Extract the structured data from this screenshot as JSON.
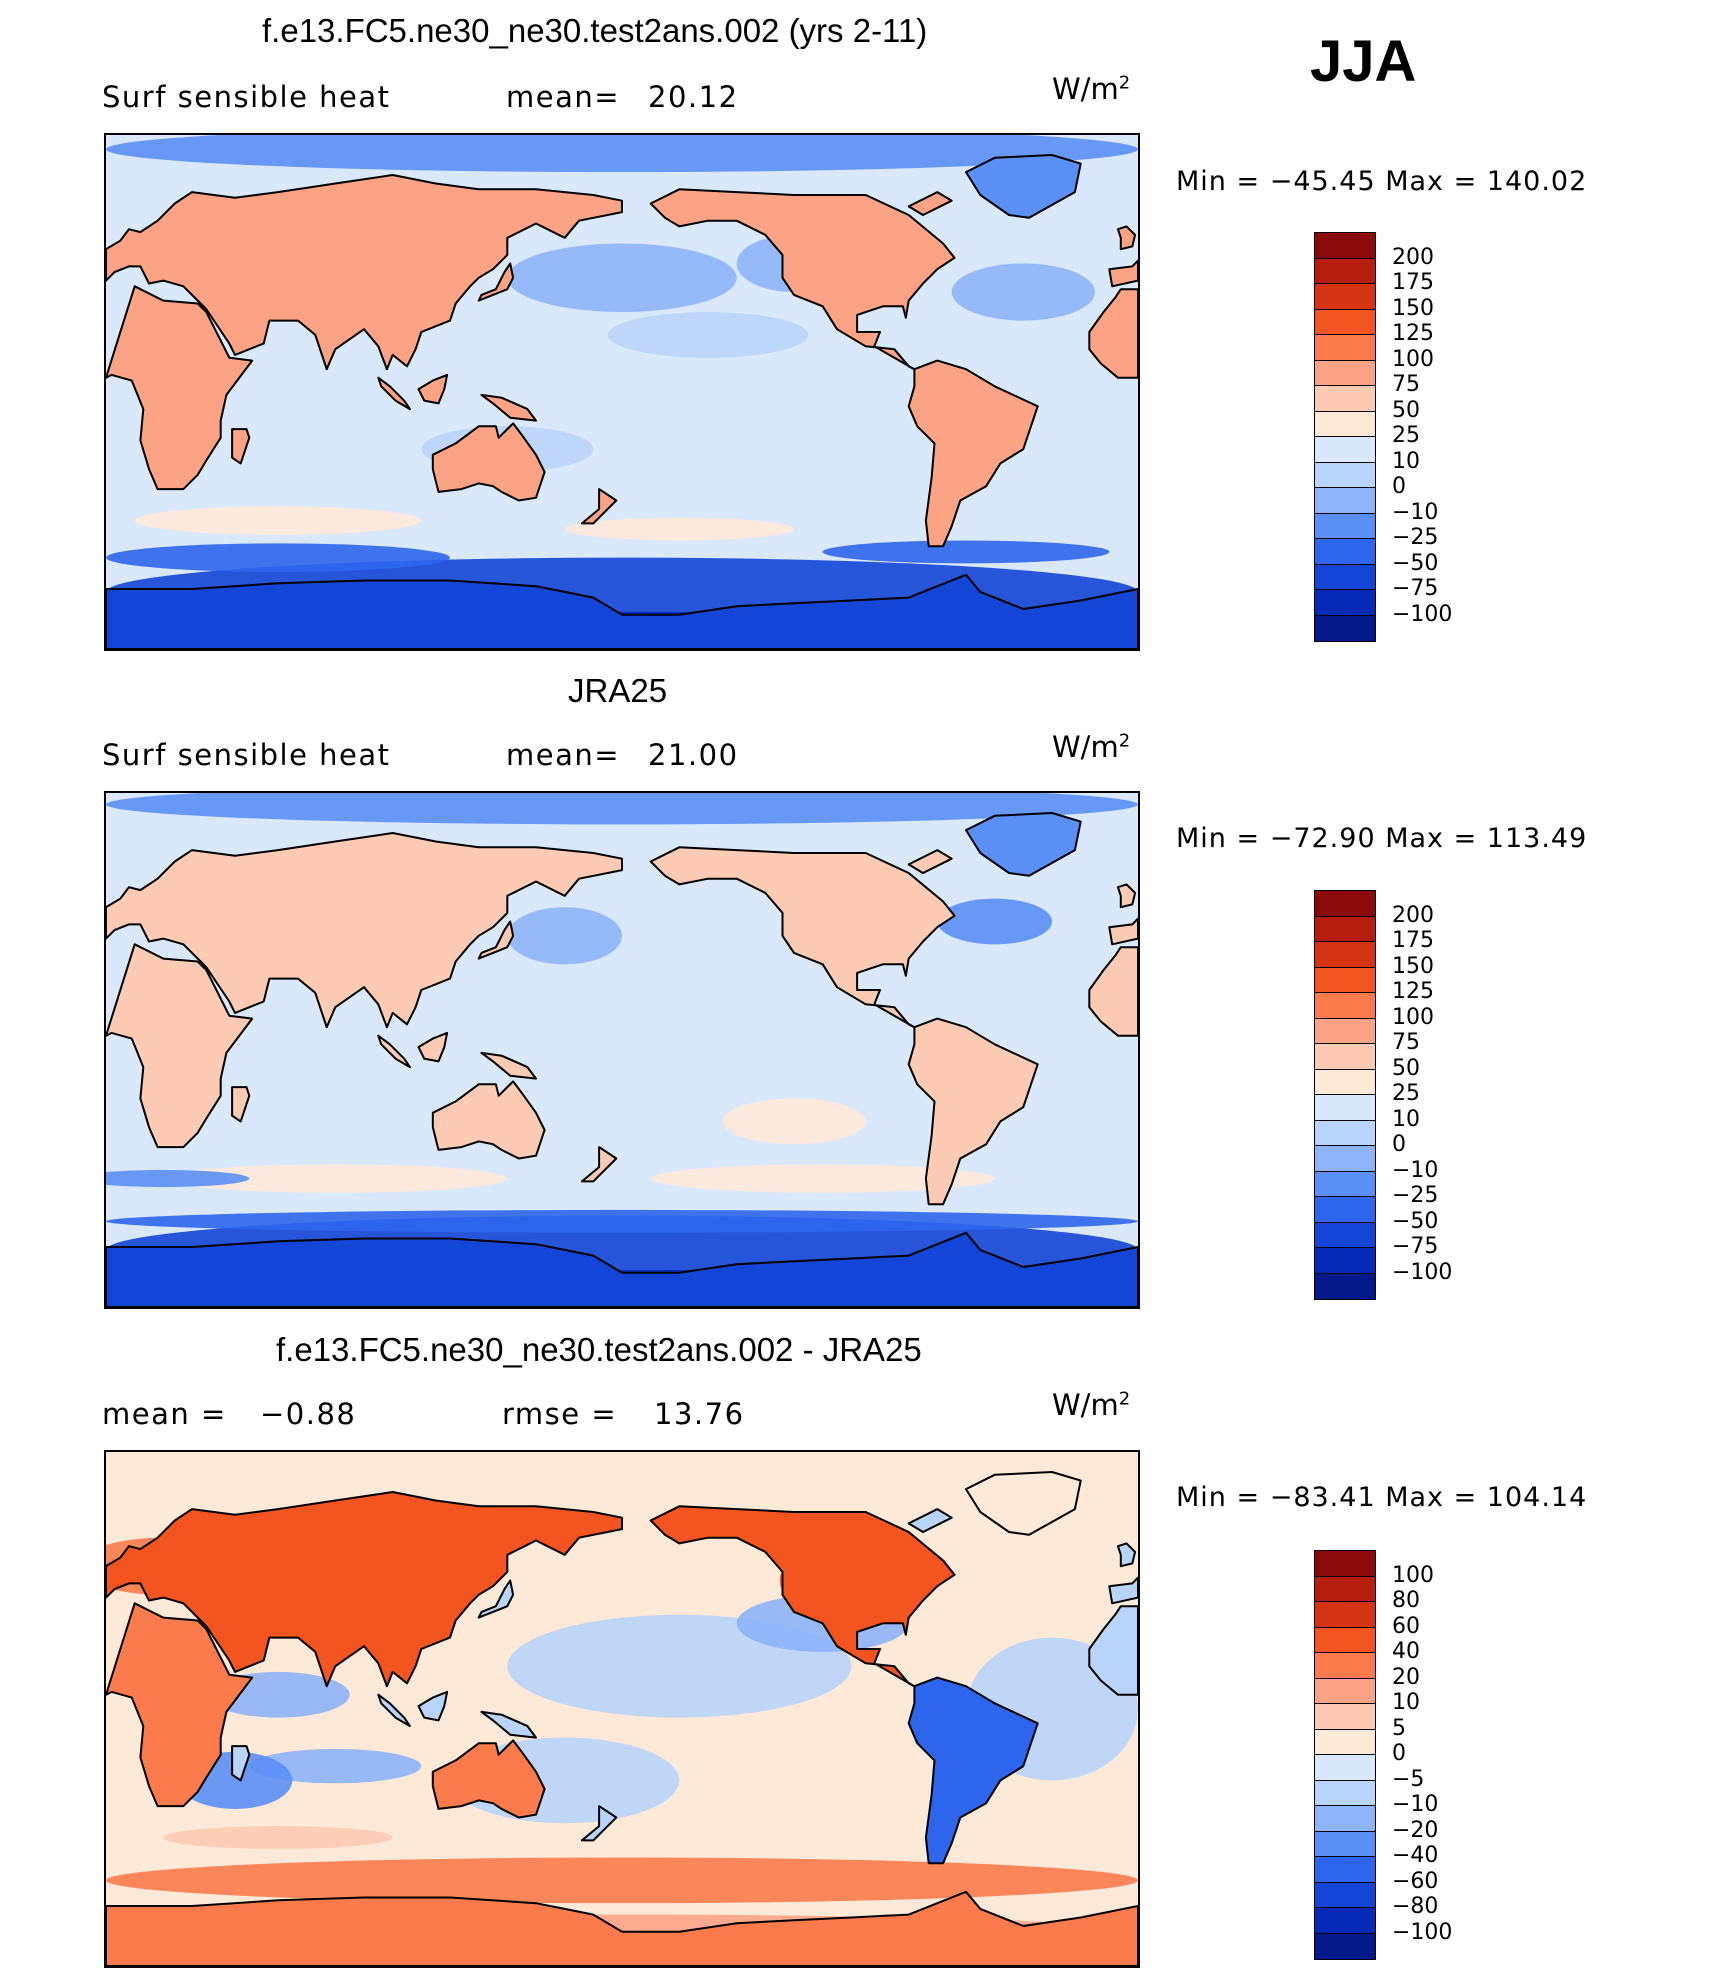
{
  "season": "JJA",
  "panels": [
    {
      "title": "f.e13.FC5.ne30_ne30.test2ans.002 (yrs 2-11)",
      "left_label": "Surf  sensible  heat",
      "stat_label": "mean=",
      "stat_value": "20.12",
      "units": "W/m",
      "units_sup": "2",
      "minmax": "Min  =  −45.45  Max  =  140.02",
      "levels": [
        "200",
        "175",
        "150",
        "125",
        "100",
        "75",
        "50",
        "25",
        "10",
        "0",
        "−10",
        "−25",
        "−50",
        "−75",
        "−100"
      ],
      "colors": [
        "#8b0a0a",
        "#b71d0c",
        "#d63312",
        "#f45420",
        "#fb7b4c",
        "#fca386",
        "#fdcab4",
        "#fde9d8",
        "#d9e9fb",
        "#b9d4fa",
        "#8db4f8",
        "#5a8ff5",
        "#2d66ec",
        "#1345d6",
        "#0629b8",
        "#041a8a"
      ],
      "map_style": "model"
    },
    {
      "title": "JRA25",
      "left_label": "Surf  sensible  heat",
      "stat_label": "mean=",
      "stat_value": "21.00",
      "units": "W/m",
      "units_sup": "2",
      "minmax": "Min  =  −72.90  Max  =  113.49",
      "levels": [
        "200",
        "175",
        "150",
        "125",
        "100",
        "75",
        "50",
        "25",
        "10",
        "0",
        "−10",
        "−25",
        "−50",
        "−75",
        "−100"
      ],
      "colors": [
        "#8b0a0a",
        "#b71d0c",
        "#d63312",
        "#f45420",
        "#fb7b4c",
        "#fca386",
        "#fdcab4",
        "#fde9d8",
        "#d9e9fb",
        "#b9d4fa",
        "#8db4f8",
        "#5a8ff5",
        "#2d66ec",
        "#1345d6",
        "#0629b8",
        "#041a8a"
      ],
      "map_style": "obs"
    },
    {
      "title": "f.e13.FC5.ne30_ne30.test2ans.002 - JRA25",
      "left_label": "mean  =",
      "left_value": "−0.88",
      "stat_label": "rmse  =",
      "stat_value": "13.76",
      "units": "W/m",
      "units_sup": "2",
      "minmax": "Min  =  −83.41  Max  =  104.14",
      "levels": [
        "100",
        "80",
        "60",
        "40",
        "20",
        "10",
        "5",
        "0",
        "−5",
        "−10",
        "−20",
        "−40",
        "−60",
        "−80",
        "−100"
      ],
      "colors": [
        "#8b0a0a",
        "#b71d0c",
        "#d63312",
        "#f45420",
        "#fb7b4c",
        "#fca386",
        "#fdcab4",
        "#fde9d8",
        "#d9e9fb",
        "#b9d4fa",
        "#8db4f8",
        "#5a8ff5",
        "#2d66ec",
        "#1345d6",
        "#0629b8",
        "#041a8a"
      ],
      "map_style": "diff"
    }
  ]
}
